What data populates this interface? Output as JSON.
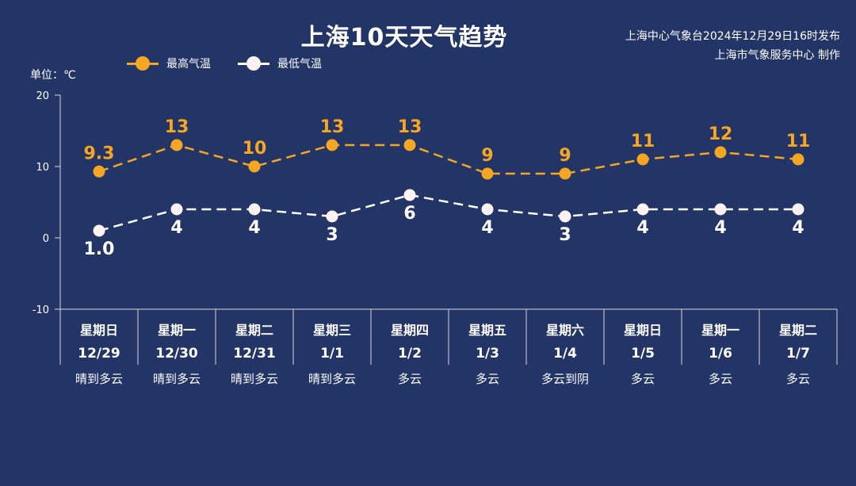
{
  "header": {
    "title": "上海10天天气趋势",
    "issuer_line1": "上海中心气象台2024年12月29日16时发布",
    "issuer_line2": "上海市气象服务中心 制作",
    "unit_label": "单位：℃"
  },
  "colors": {
    "background": "#233466",
    "high": "#F5A623",
    "low": "#FFFFFF",
    "axis": "#D8D8D8"
  },
  "chart_data": {
    "type": "line",
    "title": "上海10天天气趋势",
    "ylabel": "单位：℃",
    "ylim": [
      -10,
      20
    ],
    "yticks": [
      20,
      10,
      0,
      -10
    ],
    "grid": false,
    "legend_position": "top-left",
    "categories": [
      {
        "day": "星期日",
        "date": "12/29",
        "weather": "晴到多云"
      },
      {
        "day": "星期一",
        "date": "12/30",
        "weather": "晴到多云"
      },
      {
        "day": "星期二",
        "date": "12/31",
        "weather": "晴到多云"
      },
      {
        "day": "星期三",
        "date": "1/1",
        "weather": "晴到多云"
      },
      {
        "day": "星期四",
        "date": "1/2",
        "weather": "多云"
      },
      {
        "day": "星期五",
        "date": "1/3",
        "weather": "多云"
      },
      {
        "day": "星期六",
        "date": "1/4",
        "weather": "多云到阴"
      },
      {
        "day": "星期日",
        "date": "1/5",
        "weather": "多云"
      },
      {
        "day": "星期一",
        "date": "1/6",
        "weather": "多云"
      },
      {
        "day": "星期二",
        "date": "1/7",
        "weather": "多云"
      }
    ],
    "series": [
      {
        "name": "最高气温",
        "values": [
          9.3,
          13,
          10,
          13,
          13,
          9,
          9,
          11,
          12,
          11
        ],
        "labels": [
          "9.3",
          "13",
          "10",
          "13",
          "13",
          "9",
          "9",
          "11",
          "12",
          "11"
        ]
      },
      {
        "name": "最低气温",
        "values": [
          1.0,
          4,
          4,
          3,
          6,
          4,
          3,
          4,
          4,
          4
        ],
        "labels": [
          "1.0",
          "4",
          "4",
          "3",
          "6",
          "4",
          "3",
          "4",
          "4",
          "4"
        ]
      }
    ]
  }
}
